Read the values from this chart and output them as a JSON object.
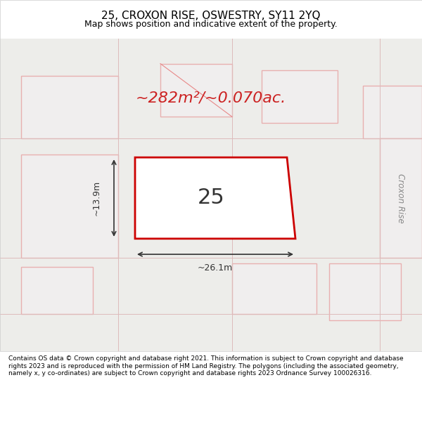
{
  "title_line1": "25, CROXON RISE, OSWESTRY, SY11 2YQ",
  "title_line2": "Map shows position and indicative extent of the property.",
  "area_text": "~282m²/~0.070ac.",
  "plot_number": "25",
  "dim_width": "~26.1m",
  "dim_height": "~13.9m",
  "footer_text": "Contains OS data © Crown copyright and database right 2021. This information is subject to Crown copyright and database rights 2023 and is reproduced with the permission of HM Land Registry. The polygons (including the associated geometry, namely x, y co-ordinates) are subject to Crown copyright and database rights 2023 Ordnance Survey 100026316.",
  "bg_color": "#f5f5f0",
  "plot_fill": "#ffffff",
  "plot_edge_color": "#cc0000",
  "neighbor_fill": "#f0eeee",
  "neighbor_edge": "#e8b0b0",
  "road_label": "Croxon Rise",
  "road_label_color": "#888888",
  "title_bg": "#ffffff",
  "footer_bg": "#ffffff",
  "map_bg": "#e8e8e0"
}
